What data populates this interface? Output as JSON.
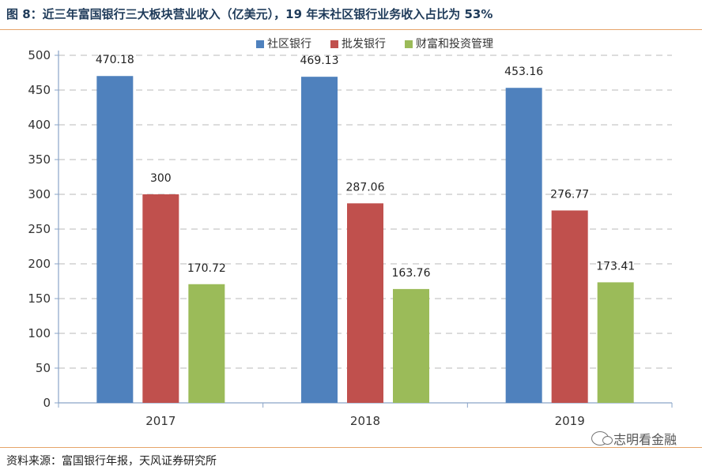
{
  "page": {
    "title": "图 8：近三年富国银行三大板块营业收入（亿美元），19 年末社区银行业务收入占比为 53%",
    "source": "资料来源：富国银行年报，天风证券研究所",
    "watermark": "志明看金融",
    "watermark_icon": "wechat-icon"
  },
  "chart_data": {
    "type": "bar",
    "title": "",
    "xlabel": "",
    "ylabel": "",
    "categories": [
      "2017",
      "2018",
      "2019"
    ],
    "series": [
      {
        "name": "社区银行",
        "color": "#4f81bd",
        "values": [
          470.18,
          469.13,
          453.16
        ],
        "labels": [
          "470.18",
          "469.13",
          "453.16"
        ]
      },
      {
        "name": "批发银行",
        "color": "#c0504d",
        "values": [
          300,
          287.06,
          276.77
        ],
        "labels": [
          "300",
          "287.06",
          "276.77"
        ]
      },
      {
        "name": "财富和投资管理",
        "color": "#9bbb59",
        "values": [
          170.72,
          163.76,
          173.41
        ],
        "labels": [
          "170.72",
          "163.76",
          "173.41"
        ]
      }
    ],
    "ylim": [
      0,
      500
    ],
    "yticks": [
      "0",
      "50",
      "100",
      "150",
      "200",
      "250",
      "300",
      "350",
      "400",
      "450",
      "500"
    ],
    "grid": true,
    "legend_position": "top"
  }
}
